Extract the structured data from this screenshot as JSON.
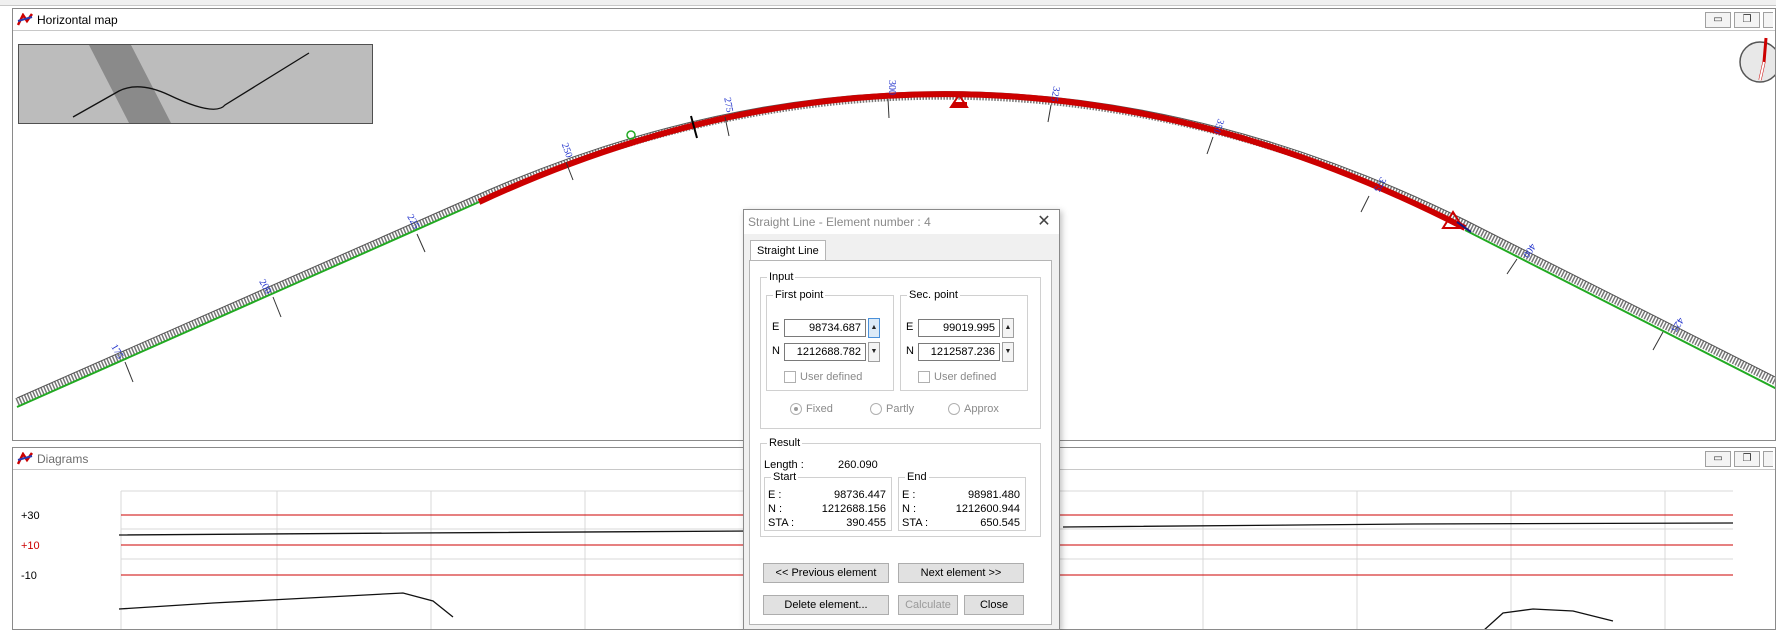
{
  "map_window": {
    "title": "Horizontal map",
    "buttons": {
      "minimize": "▭",
      "restore": "❐",
      "close": "✕"
    },
    "station_labels": [
      "175",
      "200",
      "225",
      "250",
      "275",
      "300",
      "325",
      "350",
      "375",
      "400",
      "425"
    ]
  },
  "diagrams_window": {
    "title": "Diagrams",
    "buttons": {
      "minimize": "▭",
      "restore": "❐",
      "close": "✕"
    },
    "y_labels": [
      {
        "text": "+30",
        "color": "#000000"
      },
      {
        "text": "+10",
        "color": "#cc0000"
      },
      {
        "text": "-10",
        "color": "#000000"
      }
    ]
  },
  "dialog": {
    "title": "Straight Line - Element number : 4",
    "close_glyph": "✕",
    "tab_label": "Straight Line",
    "input": {
      "legend": "Input",
      "first_point": {
        "legend": "First point",
        "e_label": "E",
        "e_value": "98734.687",
        "n_label": "N",
        "n_value": "1212688.782",
        "user_defined": "User defined"
      },
      "sec_point": {
        "legend": "Sec. point",
        "e_label": "E",
        "e_value": "99019.995",
        "n_label": "N",
        "n_value": "1212587.236",
        "user_defined": "User defined"
      },
      "radio_fixed": "Fixed",
      "radio_partly": "Partly",
      "radio_approx": "Approx",
      "selected_radio": "Fixed"
    },
    "result": {
      "legend": "Result",
      "length_label": "Length :",
      "length_value": "260.090",
      "start": {
        "legend": "Start",
        "e_label": "E   :",
        "e_value": "98736.447",
        "n_label": "N   :",
        "n_value": "1212688.156",
        "sta_label": "STA :",
        "sta_value": "390.455"
      },
      "end": {
        "legend": "End",
        "e_label": "E   :",
        "e_value": "98981.480",
        "n_label": "N   :",
        "n_value": "1212600.944",
        "sta_label": "STA :",
        "sta_value": "650.545"
      }
    },
    "buttons": {
      "previous": "<< Previous element",
      "next": "Next element >>",
      "delete": "Delete element...",
      "calculate": "Calculate",
      "close": "Close"
    }
  },
  "colors": {
    "alignment_red": "#cc0000",
    "tangent_green": "#22aa22",
    "station_blue": "#2233cc",
    "diagram_grid_red": "#cc0000"
  }
}
